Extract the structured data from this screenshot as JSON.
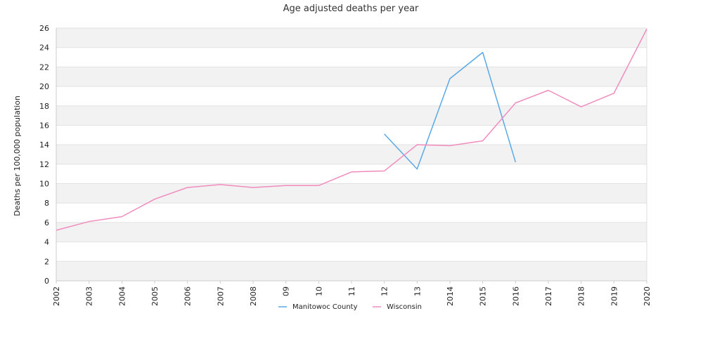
{
  "chart_data": {
    "type": "line",
    "title": "Age adjusted deaths per year",
    "xlabel": "",
    "ylabel": "Deaths per 100,000 population",
    "ylim": [
      0,
      26
    ],
    "yticks": [
      0,
      2,
      4,
      6,
      8,
      10,
      12,
      14,
      16,
      18,
      20,
      22,
      24,
      26
    ],
    "grid": "alternating horizontal bands",
    "legend_position": "bottom",
    "categories": [
      "2002",
      "2003",
      "2004",
      "2005",
      "2006",
      "2007",
      "2008",
      "09",
      "10",
      "11",
      "12",
      "13",
      "2014",
      "2015",
      "2016",
      "2017",
      "2018",
      "2019",
      "2020"
    ],
    "series": [
      {
        "name": "Manitowoc County",
        "color": "#5aa9e6",
        "values": [
          null,
          null,
          null,
          null,
          null,
          null,
          null,
          null,
          null,
          null,
          15.1,
          11.5,
          20.8,
          23.5,
          12.2,
          null,
          null,
          null,
          null
        ]
      },
      {
        "name": "Wisconsin",
        "color": "#f08cbe",
        "values": [
          5.2,
          6.1,
          6.6,
          8.4,
          9.6,
          9.9,
          9.6,
          9.8,
          9.8,
          11.2,
          11.3,
          14.0,
          13.9,
          14.4,
          18.3,
          19.6,
          17.9,
          19.3,
          25.9
        ]
      }
    ]
  }
}
